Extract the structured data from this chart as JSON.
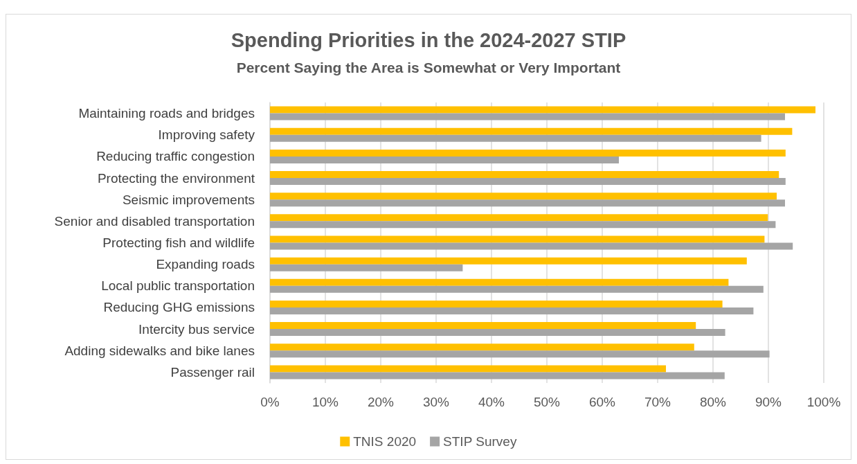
{
  "chart_data": {
    "type": "bar",
    "orientation": "horizontal",
    "title": "Spending Priorities in the 2024-2027 STIP",
    "subtitle": "Percent Saying the Area is Somewhat or Very Important",
    "categories": [
      "Maintaining roads and bridges",
      "Improving safety",
      "Reducing traffic congestion",
      "Protecting the environment",
      "Seismic improvements",
      "Senior and disabled transportation",
      "Protecting fish and wildlife",
      "Expanding roads",
      "Local public transportation",
      "Reducing GHG emissions",
      "Intercity bus service",
      "Adding sidewalks and bike lanes",
      "Passenger rail"
    ],
    "series": [
      {
        "name": "TNIS 2020",
        "color": "#ffc000",
        "values": [
          98.5,
          94.3,
          93.1,
          91.9,
          91.5,
          89.9,
          89.3,
          86.1,
          82.8,
          81.7,
          76.9,
          76.6,
          71.5
        ]
      },
      {
        "name": "STIP Survey",
        "color": "#a5a5a5",
        "values": [
          93.0,
          88.7,
          63.0,
          93.1,
          93.0,
          91.3,
          94.4,
          34.8,
          89.1,
          87.3,
          82.2,
          90.2,
          82.1
        ]
      }
    ],
    "xlim": [
      0,
      100
    ],
    "xticks": [
      {
        "value": 0,
        "label": "0%"
      },
      {
        "value": 10,
        "label": "10%"
      },
      {
        "value": 20,
        "label": "20%"
      },
      {
        "value": 30,
        "label": "30%"
      },
      {
        "value": 40,
        "label": "40%"
      },
      {
        "value": 50,
        "label": "50%"
      },
      {
        "value": 60,
        "label": "60%"
      },
      {
        "value": 70,
        "label": "70%"
      },
      {
        "value": 80,
        "label": "80%"
      },
      {
        "value": 90,
        "label": "90%"
      },
      {
        "value": 100,
        "label": "100%"
      }
    ],
    "grid": "x",
    "legend": "bottom"
  }
}
